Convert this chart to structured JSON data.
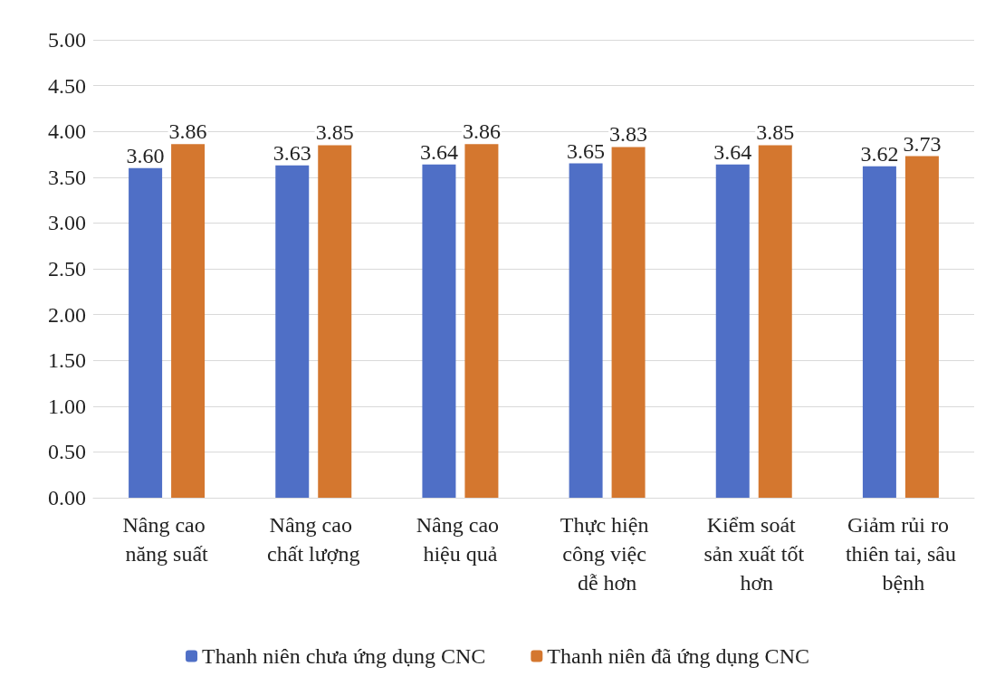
{
  "chart_data": {
    "type": "bar",
    "categories": [
      "Nâng cao năng suất",
      "Nâng cao chất lượng",
      "Nâng cao hiệu quả",
      "Thực hiện công việc dễ hơn",
      "Kiểm soát sản xuất tốt hơn",
      "Giảm rủi ro thiên tai, sâu bệnh"
    ],
    "series": [
      {
        "name": "Thanh niên chưa ứng dụng CNC",
        "color": "#4f6fc6",
        "values": [
          3.6,
          3.63,
          3.64,
          3.65,
          3.64,
          3.62
        ],
        "value_labels": [
          "3.60",
          "3.63",
          "3.64",
          "3.65",
          "3.64",
          "3.62"
        ]
      },
      {
        "name": "Thanh niên đã ứng dụng CNC",
        "color": "#d4772f",
        "values": [
          3.86,
          3.85,
          3.86,
          3.83,
          3.85,
          3.73
        ],
        "value_labels": [
          "3.86",
          "3.85",
          "3.86",
          "3.83",
          "3.85",
          "3.73"
        ]
      }
    ],
    "ylim": [
      0,
      5
    ],
    "yticks": [
      {
        "value": 0,
        "label": "0.00"
      },
      {
        "value": 0.5,
        "label": "0.50"
      },
      {
        "value": 1,
        "label": "1.00"
      },
      {
        "value": 1.5,
        "label": "1.50"
      },
      {
        "value": 2,
        "label": "2.00"
      },
      {
        "value": 2.5,
        "label": "2.50"
      },
      {
        "value": 3,
        "label": "3.00"
      },
      {
        "value": 3.5,
        "label": "3.50"
      },
      {
        "value": 4,
        "label": "4.00"
      },
      {
        "value": 4.5,
        "label": "4.50"
      },
      {
        "value": 5,
        "label": "5.00"
      }
    ],
    "grid": "y",
    "legend": "bottom"
  }
}
